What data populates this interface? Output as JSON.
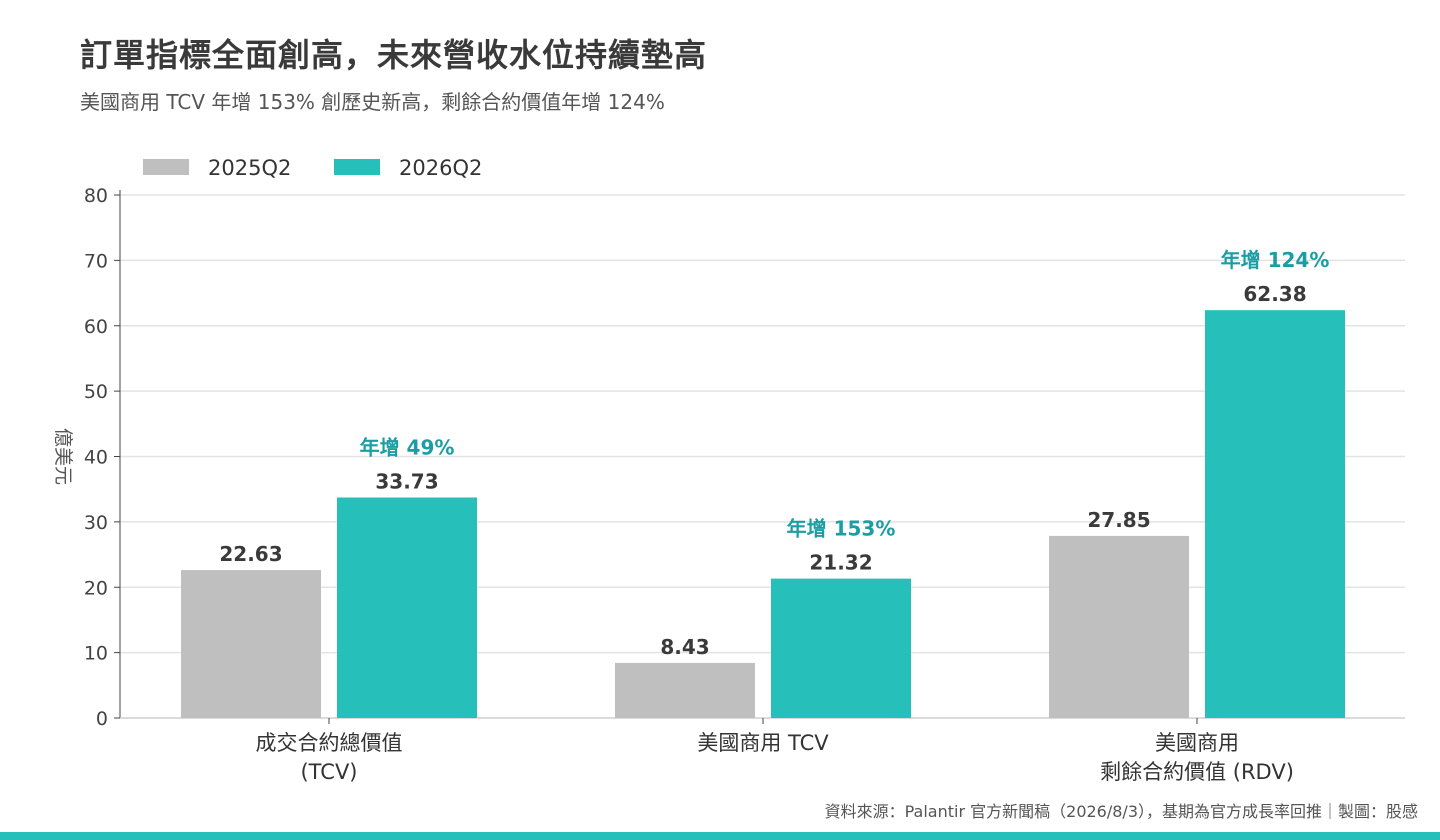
{
  "title": "訂單指標全面創高，未來營收水位持續墊高",
  "subtitle": "美國商用 TCV 年增 153% 創歷史新高，剩餘合約價值年增 124%",
  "source": "資料來源：Palantir 官方新聞稿（2026/8/3），基期為官方成長率回推｜製圖：股感",
  "colors": {
    "series_2025": "#bfbfbf",
    "series_2026": "#26bfb9",
    "growth_label": "#1a9ea3",
    "bottom_bar": "#26bfb9"
  },
  "chart_data": {
    "type": "bar",
    "title": "訂單指標全面創高，未來營收水位持續墊高",
    "subtitle": "美國商用 TCV 年增 153% 創歷史新高，剩餘合約價值年增 124%",
    "ylabel": "億美元",
    "ylim": [
      0,
      80
    ],
    "yticks": [
      0,
      10,
      20,
      30,
      40,
      50,
      60,
      70,
      80
    ],
    "grid": true,
    "legend_position": "top-left",
    "categories": [
      [
        "成交合約總價值",
        "(TCV)"
      ],
      [
        "美國商用 TCV"
      ],
      [
        "美國商用",
        "剩餘合約價值 (RDV)"
      ]
    ],
    "series": [
      {
        "name": "2025Q2",
        "values": [
          22.63,
          8.43,
          27.85
        ],
        "labels": [
          "22.63",
          "8.43",
          "27.85"
        ]
      },
      {
        "name": "2026Q2",
        "values": [
          33.73,
          21.32,
          62.38
        ],
        "labels": [
          "33.73",
          "21.32",
          "62.38"
        ]
      }
    ],
    "annotations": [
      "年增 49%",
      "年增 153%",
      "年增 124%"
    ]
  }
}
